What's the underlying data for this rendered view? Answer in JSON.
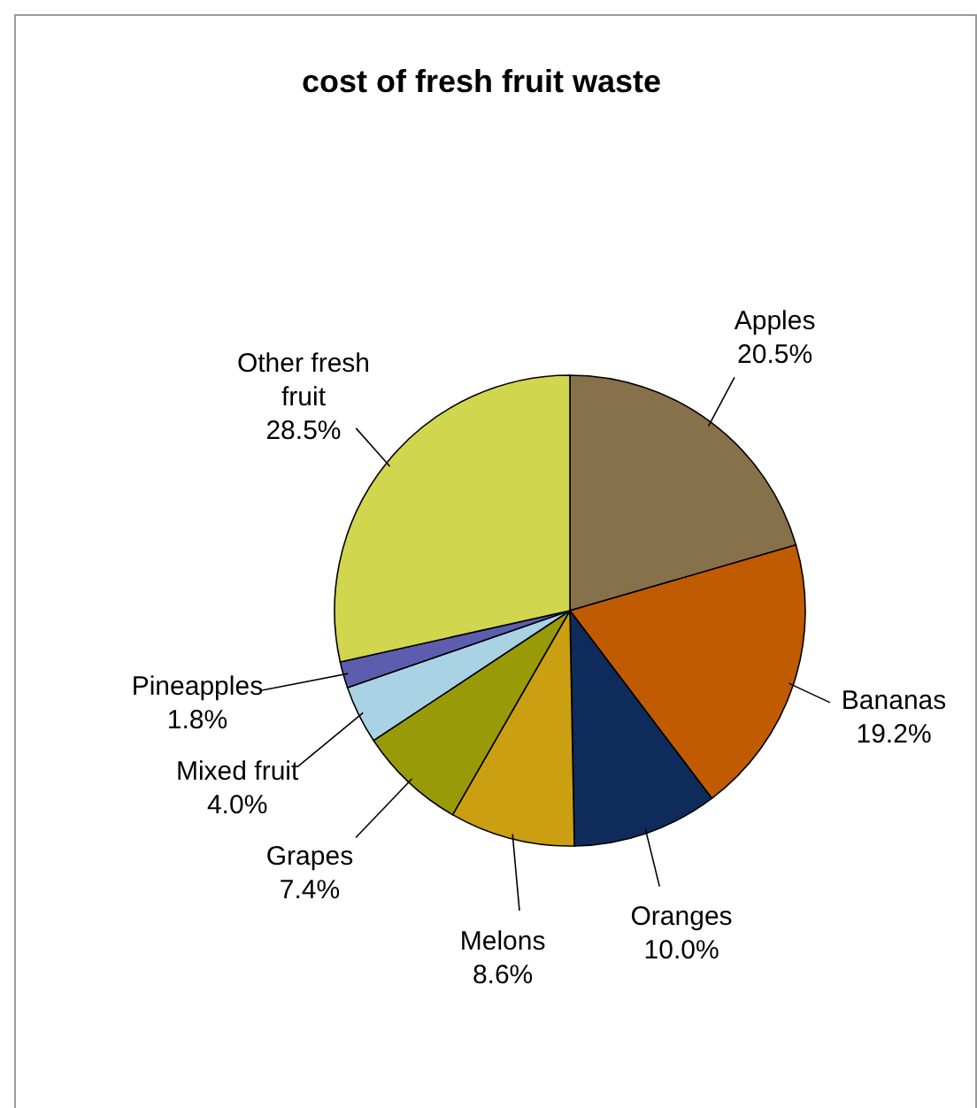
{
  "chart_data": {
    "type": "pie",
    "title": "cost of fresh fruit waste",
    "categories": [
      "Apples",
      "Bananas",
      "Oranges",
      "Melons",
      "Grapes",
      "Mixed fruit",
      "Pineapples",
      "Other fresh fruit"
    ],
    "values": [
      20.5,
      19.2,
      10.0,
      8.6,
      7.4,
      4.0,
      1.8,
      28.5
    ],
    "colors": [
      "#87714a",
      "#c05b02",
      "#0f2b5b",
      "#cb9f12",
      "#999a08",
      "#a9d3e4",
      "#5d5db0",
      "#d0d64e"
    ],
    "value_labels": [
      "20.5%",
      "19.2%",
      "10.0%",
      "8.6%",
      "7.4%",
      "4.0%",
      "1.8%",
      "28.5%"
    ],
    "legend": false
  }
}
